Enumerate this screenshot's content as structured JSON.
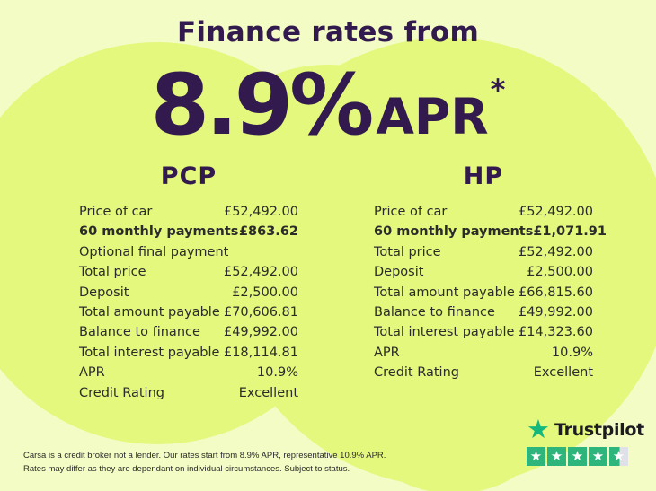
{
  "header": {
    "title": "Finance rates from",
    "rate_value": "8.9%",
    "rate_unit": "APR",
    "rate_asterisk": "*"
  },
  "columns": [
    {
      "heading": "PCP",
      "rows": [
        {
          "label": "Price of car",
          "value": "£52,492.00"
        },
        {
          "label": "60 monthly payments",
          "value": "£863.62"
        },
        {
          "label": "Optional final payment",
          "value": ""
        },
        {
          "label": "Total price",
          "value": "£52,492.00"
        },
        {
          "label": "Deposit",
          "value": "£2,500.00"
        },
        {
          "label": "Total amount payable",
          "value": "£70,606.81"
        },
        {
          "label": "Balance to finance",
          "value": "£49,992.00"
        },
        {
          "label": "Total interest payable",
          "value": "£18,114.81"
        },
        {
          "label": "APR",
          "value": "10.9%"
        },
        {
          "label": "Credit Rating",
          "value": "Excellent"
        }
      ]
    },
    {
      "heading": "HP",
      "rows": [
        {
          "label": "Price of car",
          "value": "£52,492.00"
        },
        {
          "label": "60 monthly payments",
          "value": "£1,071.91"
        },
        {
          "label": "Total price",
          "value": "£52,492.00"
        },
        {
          "label": "Deposit",
          "value": "£2,500.00"
        },
        {
          "label": "Total amount payable",
          "value": "£66,815.60"
        },
        {
          "label": "Balance to finance",
          "value": "£49,992.00"
        },
        {
          "label": "Total interest payable",
          "value": "£14,323.60"
        },
        {
          "label": "APR",
          "value": "10.9%"
        },
        {
          "label": "Credit Rating",
          "value": "Excellent"
        }
      ]
    }
  ],
  "trustpilot": {
    "brand": "Trustpilot",
    "star_glyph": "★",
    "rating_stars_total": 5,
    "rating_value": 4.5
  },
  "footer": {
    "disclaimer_line1": "Carsa is a credit broker not a lender. Our rates start from 8.9% APR, representative 10.9% APR.",
    "disclaimer_line2": "Rates may differ as they are dependant on individual circumstances. Subject to status."
  },
  "colors": {
    "background_light": "#f3fcc4",
    "blob_green": "#e3f87c",
    "brand_purple": "#331a4e",
    "body_text": "#2b2b2b",
    "trustpilot_green": "#2eb57c",
    "trustpilot_partial_grey": "#e0e0e8"
  }
}
